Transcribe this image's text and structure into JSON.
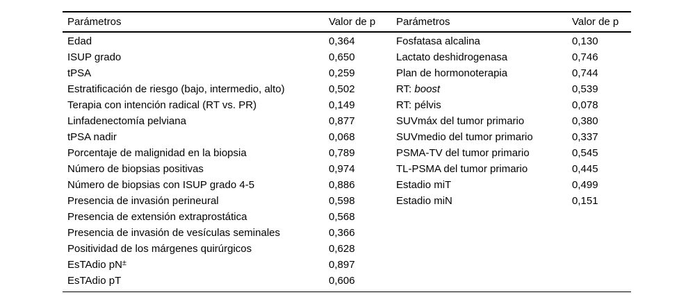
{
  "table": {
    "background": "#ffffff",
    "text_color": "#000000",
    "rule_color": "#000000",
    "left": {
      "header": {
        "param": "Parámetros",
        "value": "Valor de p"
      },
      "rows": [
        {
          "param": "Edad",
          "p": "0,364"
        },
        {
          "param": "ISUP grado",
          "p": "0,650"
        },
        {
          "param": "tPSA",
          "p": "0,259"
        },
        {
          "param": "Estratificación de riesgo (bajo, intermedio, alto)",
          "p": "0,502"
        },
        {
          "param": "Terapia con intención radical (RT vs. PR)",
          "p": "0,149"
        },
        {
          "param": "Linfadenectomía pelviana",
          "p": "0,877"
        },
        {
          "param": "tPSA nadir",
          "p": "0,068"
        },
        {
          "param": "Porcentaje de malignidad en la biopsia",
          "p": "0,789"
        },
        {
          "param": "Número de biopsias positivas",
          "p": "0,974"
        },
        {
          "param": "Número de biopsias con ISUP grado 4-5",
          "p": "0,886"
        },
        {
          "param": "Presencia de invasión perineural",
          "p": "0,598"
        },
        {
          "param": "Presencia de extensión extraprostática",
          "p": "0,568"
        },
        {
          "param": "Presencia de invasión de vesículas seminales",
          "p": "0,366"
        },
        {
          "param": "Positividad de los márgenes quirúrgicos",
          "p": "0,628"
        },
        {
          "param": "EsTAdio pN",
          "param_sup": "±",
          "p": "0,897"
        },
        {
          "param": "EsTAdio pT",
          "p": "0,606"
        }
      ]
    },
    "right": {
      "header": {
        "param": "Parámetros",
        "value": "Valor de p"
      },
      "rows": [
        {
          "param": "Fosfatasa alcalina",
          "p": "0,130"
        },
        {
          "param": "Lactato deshidrogenasa",
          "p": "0,746"
        },
        {
          "param": "Plan de hormonoterapia",
          "p": "0,744"
        },
        {
          "param": "RT: ",
          "param_italic": "boost",
          "p": "0,539"
        },
        {
          "param": "RT: pélvis",
          "p": "0,078"
        },
        {
          "param": "SUVmáx del tumor primario",
          "p": "0,380"
        },
        {
          "param": "SUVmedio del tumor primario",
          "p": "0,337"
        },
        {
          "param": "PSMA-TV del tumor primario",
          "p": "0,545"
        },
        {
          "param": "TL-PSMA del tumor primario",
          "p": "0,445"
        },
        {
          "param": "Estadio miT",
          "p": "0,499"
        },
        {
          "param": "Estadio miN",
          "p": "0,151"
        }
      ]
    }
  }
}
